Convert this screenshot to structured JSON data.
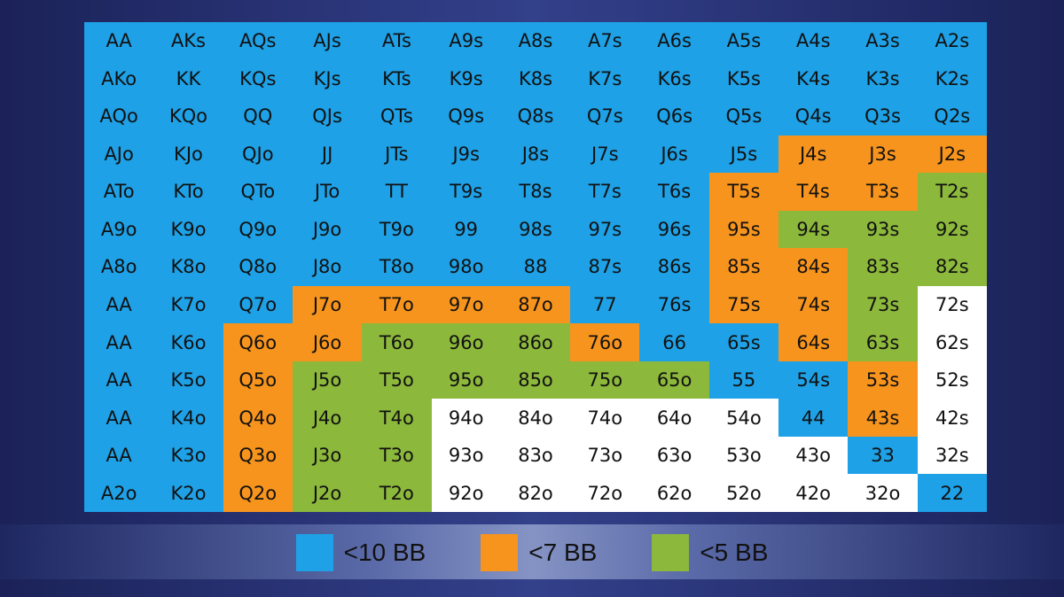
{
  "chart_data": {
    "type": "table",
    "colors": {
      "B": "#1ea1e6",
      "O": "#f7941d",
      "G": "#8cb83c",
      "W": "#ffffff"
    },
    "legend": [
      {
        "key": "B",
        "label": "<10 BB"
      },
      {
        "key": "O",
        "label": "<7 BB"
      },
      {
        "key": "G",
        "label": "<5 BB"
      }
    ],
    "rows": [
      {
        "hands": [
          "AA",
          "AKs",
          "AQs",
          "AJs",
          "ATs",
          "A9s",
          "A8s",
          "A7s",
          "A6s",
          "A5s",
          "A4s",
          "A3s",
          "A2s"
        ],
        "colors": "BBBBBBBBBBBBB"
      },
      {
        "hands": [
          "AKo",
          "KK",
          "KQs",
          "KJs",
          "KTs",
          "K9s",
          "K8s",
          "K7s",
          "K6s",
          "K5s",
          "K4s",
          "K3s",
          "K2s"
        ],
        "colors": "BBBBBBBBBBBBB"
      },
      {
        "hands": [
          "AQo",
          "KQo",
          "QQ",
          "QJs",
          "QTs",
          "Q9s",
          "Q8s",
          "Q7s",
          "Q6s",
          "Q5s",
          "Q4s",
          "Q3s",
          "Q2s"
        ],
        "colors": "BBBBBBBBBBBBB"
      },
      {
        "hands": [
          "AJo",
          "KJo",
          "QJo",
          "JJ",
          "JTs",
          "J9s",
          "J8s",
          "J7s",
          "J6s",
          "J5s",
          "J4s",
          "J3s",
          "J2s"
        ],
        "colors": "BBBBBBBBBBOOO"
      },
      {
        "hands": [
          "ATo",
          "KTo",
          "QTo",
          "JTo",
          "TT",
          "T9s",
          "T8s",
          "T7s",
          "T6s",
          "T5s",
          "T4s",
          "T3s",
          "T2s"
        ],
        "colors": "BBBBBBBBBOOOG"
      },
      {
        "hands": [
          "A9o",
          "K9o",
          "Q9o",
          "J9o",
          "T9o",
          "99",
          "98s",
          "97s",
          "96s",
          "95s",
          "94s",
          "93s",
          "92s"
        ],
        "colors": "BBBBBBBBBOGGG"
      },
      {
        "hands": [
          "A8o",
          "K8o",
          "Q8o",
          "J8o",
          "T8o",
          "98o",
          "88",
          "87s",
          "86s",
          "85s",
          "84s",
          "83s",
          "82s"
        ],
        "colors": "BBBBBBBBBOOGG"
      },
      {
        "hands": [
          "AA",
          "K7o",
          "Q7o",
          "J7o",
          "T7o",
          "97o",
          "87o",
          "77",
          "76s",
          "75s",
          "74s",
          "73s",
          "72s"
        ],
        "colors": "BBBOOOOBBOOGW"
      },
      {
        "hands": [
          "AA",
          "K6o",
          "Q6o",
          "J6o",
          "T6o",
          "96o",
          "86o",
          "76o",
          "66",
          "65s",
          "64s",
          "63s",
          "62s"
        ],
        "colors": "BBOOGGGOBBOGW"
      },
      {
        "hands": [
          "AA",
          "K5o",
          "Q5o",
          "J5o",
          "T5o",
          "95o",
          "85o",
          "75o",
          "65o",
          "55",
          "54s",
          "53s",
          "52s"
        ],
        "colors": "BBOGGGGGGBBOW"
      },
      {
        "hands": [
          "AA",
          "K4o",
          "Q4o",
          "J4o",
          "T4o",
          "94o",
          "84o",
          "74o",
          "64o",
          "54o",
          "44",
          "43s",
          "42s"
        ],
        "colors": "BBOGGWWWWWBOW"
      },
      {
        "hands": [
          "AA",
          "K3o",
          "Q3o",
          "J3o",
          "T3o",
          "93o",
          "83o",
          "73o",
          "63o",
          "53o",
          "43o",
          "33",
          "32s"
        ],
        "colors": "BBOGGWWWWWWBW"
      },
      {
        "hands": [
          "A2o",
          "K2o",
          "Q2o",
          "J2o",
          "T2o",
          "92o",
          "82o",
          "72o",
          "62o",
          "52o",
          "42o",
          "32o",
          "22"
        ],
        "colors": "BBOGGWWWWWWWB"
      }
    ]
  }
}
